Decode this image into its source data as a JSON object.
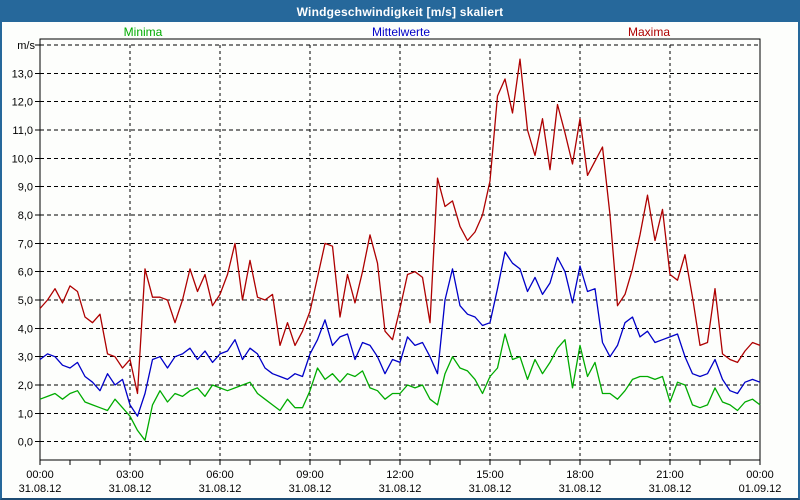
{
  "window": {
    "title": "Windgeschwindigkeit [m/s] skaliert"
  },
  "colors": {
    "titlebar_bg": "#26689B",
    "frame": "#26689B",
    "minima": "#00AB00",
    "mittelwerte": "#0000C8",
    "maxima": "#AE0000",
    "grid": "#000000"
  },
  "chart_data": {
    "type": "line",
    "title": "Windgeschwindigkeit [m/s] skaliert",
    "ylabel": "m/s",
    "xlabel": "",
    "grid": true,
    "legend_position": "top",
    "ylim": [
      0,
      14
    ],
    "x_range_hours": [
      0,
      24
    ],
    "x_step_hours": 0.25,
    "y_tick_labels": [
      "0,0",
      "1,0",
      "2,0",
      "3,0",
      "4,0",
      "5,0",
      "6,0",
      "7,0",
      "8,0",
      "9,0",
      "10,0",
      "11,0",
      "12,0",
      "13,0"
    ],
    "x_ticks": [
      {
        "time": "00:00",
        "date": "31.08.12"
      },
      {
        "time": "03:00",
        "date": "31.08.12"
      },
      {
        "time": "06:00",
        "date": "31.08.12"
      },
      {
        "time": "09:00",
        "date": "31.08.12"
      },
      {
        "time": "12:00",
        "date": "31.08.12"
      },
      {
        "time": "15:00",
        "date": "31.08.12"
      },
      {
        "time": "18:00",
        "date": "31.08.12"
      },
      {
        "time": "21:00",
        "date": "31.08.12"
      },
      {
        "time": "00:00",
        "date": "01.09.12"
      }
    ],
    "series": [
      {
        "name": "Minima",
        "color": "#00AB00",
        "values": [
          1.5,
          1.6,
          1.7,
          1.5,
          1.7,
          1.8,
          1.4,
          1.3,
          1.2,
          1.1,
          1.5,
          1.2,
          0.9,
          0.4,
          0.05,
          1.3,
          1.8,
          1.4,
          1.7,
          1.6,
          1.8,
          1.9,
          1.6,
          2.0,
          1.9,
          1.8,
          1.9,
          2.0,
          2.1,
          1.7,
          1.5,
          1.3,
          1.1,
          1.5,
          1.2,
          1.2,
          1.8,
          2.6,
          2.2,
          2.4,
          2.1,
          2.4,
          2.3,
          2.5,
          1.9,
          1.8,
          1.5,
          1.7,
          1.7,
          2.0,
          1.9,
          2.0,
          1.5,
          1.3,
          2.4,
          3.0,
          2.6,
          2.5,
          2.2,
          1.7,
          2.3,
          2.6,
          3.8,
          2.9,
          3.0,
          2.2,
          2.9,
          2.4,
          2.8,
          3.3,
          3.6,
          1.9,
          3.4,
          2.3,
          2.8,
          1.7,
          1.7,
          1.5,
          1.8,
          2.2,
          2.3,
          2.3,
          2.2,
          2.3,
          1.4,
          2.1,
          2.0,
          1.3,
          1.2,
          1.3,
          1.9,
          1.4,
          1.3,
          1.1,
          1.4,
          1.5,
          1.3
        ]
      },
      {
        "name": "Mittelwerte",
        "color": "#0000C8",
        "values": [
          2.9,
          3.1,
          3.0,
          2.7,
          2.6,
          2.8,
          2.3,
          2.1,
          1.8,
          2.4,
          2.0,
          2.2,
          1.3,
          0.9,
          1.7,
          2.9,
          3.0,
          2.6,
          3.0,
          3.1,
          3.3,
          2.9,
          3.2,
          2.8,
          3.1,
          3.2,
          3.6,
          2.9,
          3.3,
          3.1,
          2.6,
          2.4,
          2.3,
          2.2,
          2.4,
          2.3,
          3.1,
          3.6,
          4.3,
          3.4,
          3.7,
          3.8,
          2.9,
          3.5,
          3.4,
          3.0,
          2.4,
          2.9,
          2.8,
          3.7,
          3.4,
          3.5,
          3.0,
          2.4,
          5.0,
          6.1,
          4.8,
          4.5,
          4.4,
          4.1,
          4.2,
          5.4,
          6.7,
          6.3,
          6.1,
          5.3,
          5.8,
          5.2,
          5.6,
          6.5,
          6.0,
          4.9,
          6.2,
          5.3,
          5.4,
          3.5,
          3.0,
          3.4,
          4.2,
          4.4,
          3.7,
          3.9,
          3.5,
          3.6,
          3.7,
          3.8,
          3.0,
          2.4,
          2.3,
          2.4,
          2.9,
          2.2,
          1.8,
          1.7,
          2.1,
          2.2,
          2.1
        ]
      },
      {
        "name": "Maxima",
        "color": "#AE0000",
        "values": [
          4.7,
          5.0,
          5.4,
          4.9,
          5.5,
          5.3,
          4.4,
          4.2,
          4.5,
          3.1,
          3.0,
          2.6,
          2.9,
          1.7,
          6.1,
          5.1,
          5.1,
          5.0,
          4.2,
          5.0,
          6.1,
          5.3,
          5.9,
          4.8,
          5.2,
          5.9,
          7.0,
          5.0,
          6.4,
          5.1,
          5.0,
          5.2,
          3.4,
          4.2,
          3.4,
          3.9,
          4.6,
          5.8,
          7.0,
          6.9,
          4.4,
          5.9,
          4.9,
          6.0,
          7.3,
          6.3,
          3.9,
          3.6,
          4.7,
          5.9,
          6.0,
          5.8,
          4.2,
          9.3,
          8.3,
          8.5,
          7.6,
          7.1,
          7.4,
          8.0,
          9.2,
          12.2,
          12.8,
          11.6,
          13.5,
          11.0,
          10.1,
          11.4,
          9.6,
          11.9,
          10.9,
          9.8,
          11.4,
          9.4,
          9.9,
          10.4,
          8.0,
          4.8,
          5.2,
          6.1,
          7.3,
          8.7,
          7.1,
          8.2,
          5.9,
          5.7,
          6.6,
          5.1,
          3.4,
          3.5,
          5.4,
          3.1,
          2.9,
          2.8,
          3.2,
          3.5,
          3.4
        ]
      }
    ]
  }
}
